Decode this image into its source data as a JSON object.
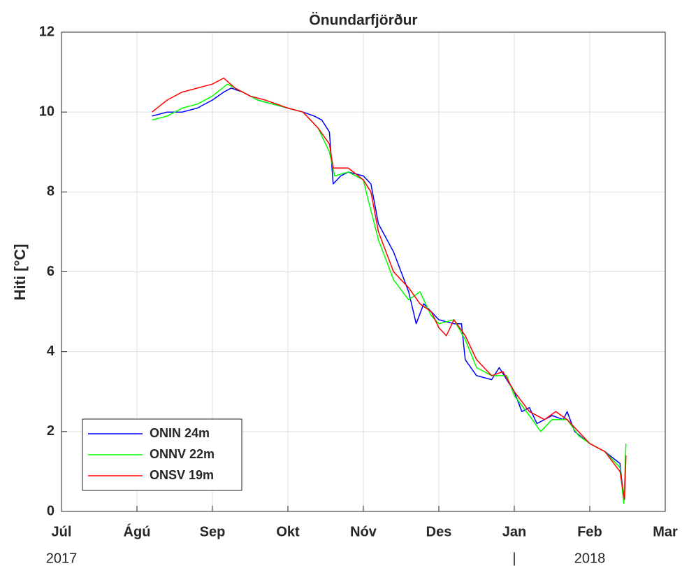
{
  "chart_data": {
    "type": "line",
    "title": "Önundarfjörður",
    "y_label": "Hiti [°C]",
    "xlim": [
      0,
      8
    ],
    "xticks": [
      {
        "value": 0,
        "label": "Júl"
      },
      {
        "value": 1,
        "label": "Ágú"
      },
      {
        "value": 2,
        "label": "Sep"
      },
      {
        "value": 3,
        "label": "Okt"
      },
      {
        "value": 4,
        "label": "Nóv"
      },
      {
        "value": 5,
        "label": "Des"
      },
      {
        "value": 6,
        "label": "Jan"
      },
      {
        "value": 7,
        "label": "Feb"
      },
      {
        "value": 8,
        "label": "Mar"
      }
    ],
    "x_secondary_labels": [
      {
        "value": 0,
        "label": "2017"
      },
      {
        "value": 6,
        "label": "|"
      },
      {
        "value": 7,
        "label": "2018"
      }
    ],
    "ylim": [
      0,
      12
    ],
    "yticks": [
      0,
      2,
      4,
      6,
      8,
      10,
      12
    ],
    "grid": true,
    "legend": "lower-left",
    "series": [
      {
        "name": "ONIN 24m",
        "color": "#0000ff",
        "x": [
          1.2,
          1.4,
          1.6,
          1.8,
          2.0,
          2.15,
          2.25,
          2.4,
          2.6,
          2.8,
          3.0,
          3.2,
          3.35,
          3.45,
          3.55,
          3.6,
          3.7,
          3.8,
          4.0,
          4.1,
          4.2,
          4.4,
          4.6,
          4.7,
          4.8,
          5.0,
          5.2,
          5.3,
          5.35,
          5.5,
          5.7,
          5.8,
          6.0,
          6.1,
          6.2,
          6.3,
          6.5,
          6.65,
          6.7,
          6.8,
          7.0,
          7.2,
          7.4,
          7.45
        ],
        "values": [
          9.9,
          10.0,
          10.0,
          10.1,
          10.3,
          10.5,
          10.6,
          10.5,
          10.3,
          10.2,
          10.1,
          10.0,
          9.9,
          9.8,
          9.5,
          8.2,
          8.4,
          8.5,
          8.4,
          8.2,
          7.2,
          6.5,
          5.5,
          4.7,
          5.2,
          4.8,
          4.7,
          4.7,
          3.8,
          3.4,
          3.3,
          3.6,
          3.0,
          2.5,
          2.6,
          2.2,
          2.4,
          2.3,
          2.5,
          2.0,
          1.7,
          1.5,
          1.2,
          0.3
        ]
      },
      {
        "name": "ONNV 22m",
        "color": "#00ff00",
        "x": [
          1.2,
          1.4,
          1.6,
          1.8,
          2.0,
          2.2,
          2.4,
          2.6,
          2.8,
          3.0,
          3.2,
          3.4,
          3.55,
          3.62,
          3.8,
          4.0,
          4.05,
          4.2,
          4.4,
          4.6,
          4.75,
          4.9,
          5.0,
          5.2,
          5.35,
          5.5,
          5.7,
          5.9,
          6.0,
          6.2,
          6.35,
          6.5,
          6.7,
          6.85,
          7.0,
          7.2,
          7.4,
          7.45,
          7.48
        ],
        "values": [
          9.8,
          9.9,
          10.1,
          10.2,
          10.4,
          10.7,
          10.5,
          10.3,
          10.2,
          10.1,
          10.0,
          9.6,
          9.0,
          8.4,
          8.5,
          8.3,
          7.9,
          6.8,
          5.8,
          5.3,
          5.5,
          4.9,
          4.7,
          4.8,
          4.3,
          3.6,
          3.4,
          3.4,
          2.9,
          2.4,
          2.0,
          2.3,
          2.3,
          1.9,
          1.7,
          1.5,
          1.1,
          0.2,
          1.7
        ]
      },
      {
        "name": "ONSV 19m",
        "color": "#ff0000",
        "x": [
          1.2,
          1.4,
          1.6,
          1.8,
          2.0,
          2.15,
          2.3,
          2.5,
          2.7,
          3.0,
          3.2,
          3.4,
          3.55,
          3.6,
          3.8,
          4.0,
          4.1,
          4.2,
          4.4,
          4.6,
          4.75,
          4.9,
          5.0,
          5.1,
          5.2,
          5.35,
          5.5,
          5.7,
          5.85,
          6.0,
          6.2,
          6.4,
          6.55,
          6.7,
          6.85,
          7.0,
          7.2,
          7.4,
          7.46,
          7.48
        ],
        "values": [
          10.0,
          10.3,
          10.5,
          10.6,
          10.7,
          10.85,
          10.6,
          10.4,
          10.3,
          10.1,
          10.0,
          9.6,
          9.2,
          8.6,
          8.6,
          8.3,
          8.0,
          7.0,
          6.0,
          5.6,
          5.2,
          5.0,
          4.6,
          4.4,
          4.8,
          4.4,
          3.8,
          3.4,
          3.5,
          3.0,
          2.5,
          2.3,
          2.5,
          2.3,
          2.0,
          1.7,
          1.5,
          1.0,
          0.3,
          1.4
        ]
      }
    ]
  }
}
